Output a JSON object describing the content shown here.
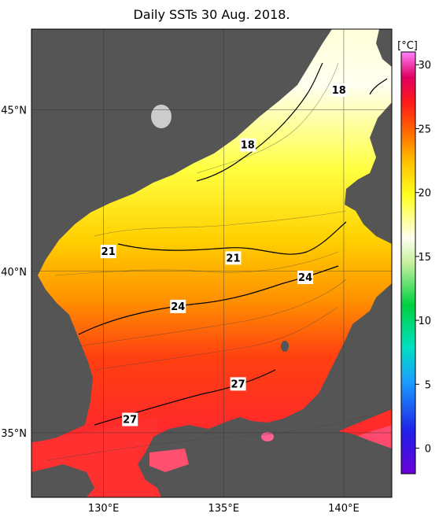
{
  "title": "Daily SSTs 30 Aug. 2018.",
  "map": {
    "lon_range": [
      127,
      142
    ],
    "lat_range": [
      33,
      47.5
    ],
    "lon_ticks": [
      {
        "value": 130,
        "label": "130°E"
      },
      {
        "value": 135,
        "label": "135°E"
      },
      {
        "value": 140,
        "label": "140°E"
      }
    ],
    "lat_ticks": [
      {
        "value": 35,
        "label": "35°N"
      },
      {
        "value": 40,
        "label": "40°N"
      },
      {
        "value": 45,
        "label": "45°N"
      }
    ],
    "land_color": "#555555",
    "grid": true,
    "contour_labels": [
      {
        "text": "18",
        "lon": 136.0,
        "lat": 43.9
      },
      {
        "text": "18",
        "lon": 139.8,
        "lat": 45.6
      },
      {
        "text": "21",
        "lon": 130.2,
        "lat": 40.6
      },
      {
        "text": "21",
        "lon": 135.4,
        "lat": 40.4
      },
      {
        "text": "24",
        "lon": 138.4,
        "lat": 39.8
      },
      {
        "text": "24",
        "lon": 133.1,
        "lat": 38.9
      },
      {
        "text": "27",
        "lon": 135.6,
        "lat": 36.5
      },
      {
        "text": "27",
        "lon": 131.1,
        "lat": 35.4
      }
    ]
  },
  "colorbar": {
    "unit": "[°C]",
    "min": -2,
    "max": 31,
    "ticks": [
      0,
      5,
      10,
      15,
      20,
      25,
      30
    ],
    "colors": [
      "#6a00d8",
      "#2020e8",
      "#1aa0ff",
      "#00e0c0",
      "#00d040",
      "#c8f0a0",
      "#fffff0",
      "#ffff20",
      "#ffc000",
      "#ff6a00",
      "#ff1a1a",
      "#e00060",
      "#ff80ff"
    ]
  }
}
